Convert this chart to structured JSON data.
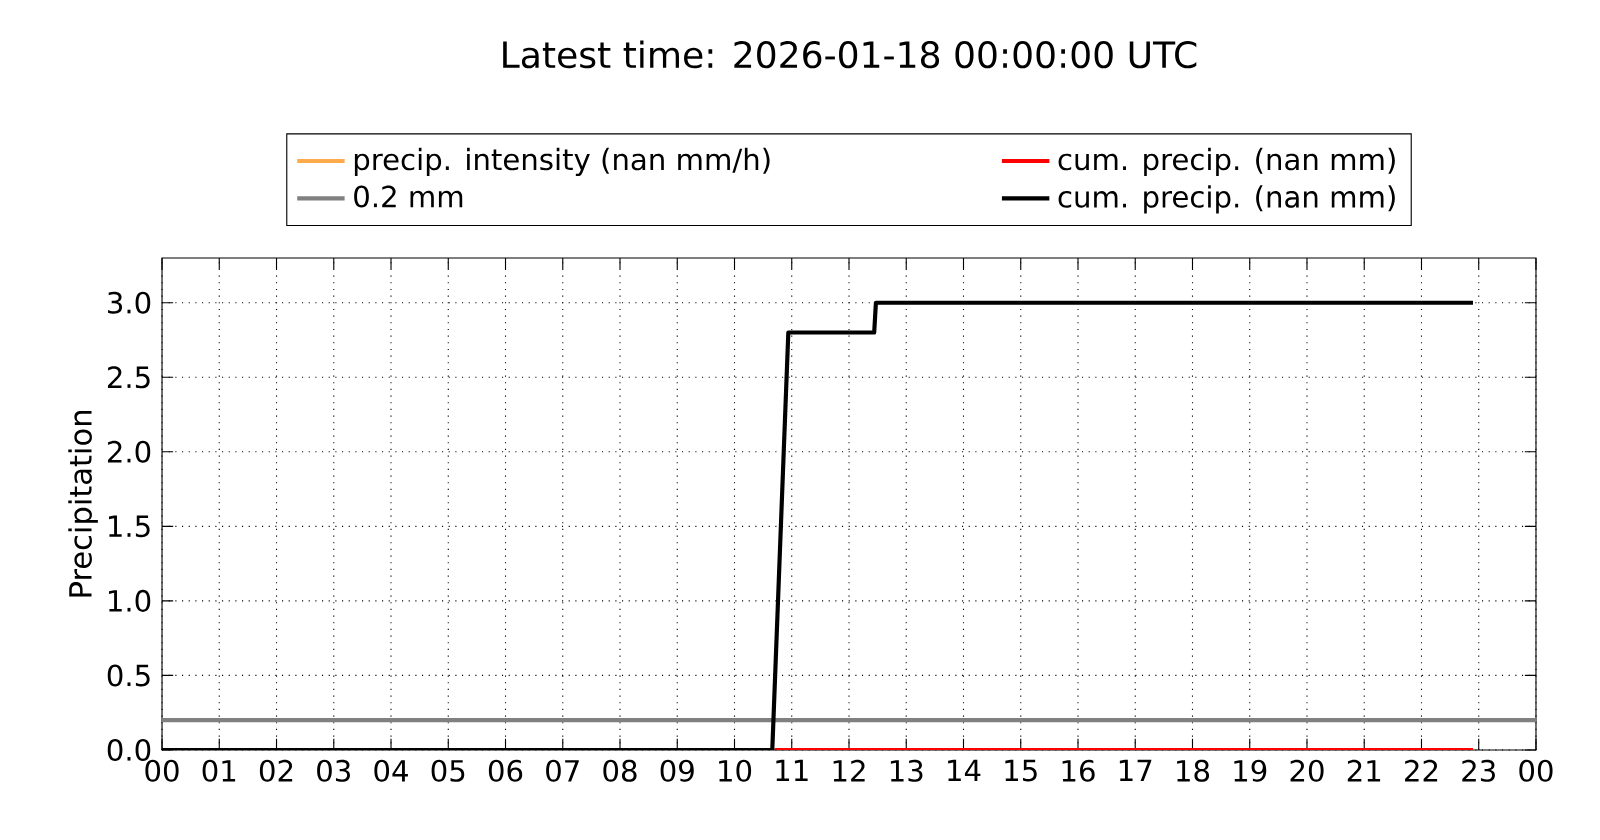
{
  "chart_data": {
    "type": "line",
    "title": "Latest time: 2026-01-18 00:00:00 UTC",
    "ylabel": "Precipitation",
    "series": [
      {
        "name": "precip. intensity (nan mm/h)",
        "color": "#ffaa4c"
      },
      {
        "name": "cum. precip. (nan mm)",
        "color": "#ff0000",
        "x": [
          10.7,
          22.9
        ],
        "values": [
          0,
          0
        ]
      },
      {
        "name": "0.2 mm",
        "color": "#808080",
        "x": [
          0,
          24
        ],
        "values": [
          0.2,
          0.2
        ]
      },
      {
        "name": "cum. precip. (nan mm)",
        "color": "#000000",
        "x": [
          0,
          10.66,
          10.84,
          10.94,
          12.44,
          12.47,
          22.9
        ],
        "values": [
          0,
          0,
          1.8,
          2.8,
          2.8,
          3.0,
          3.0
        ]
      }
    ],
    "xlim": [
      0,
      24
    ],
    "xticks": [
      {
        "value": 0,
        "label": "00"
      },
      {
        "value": 1,
        "label": "01"
      },
      {
        "value": 2,
        "label": "02"
      },
      {
        "value": 3,
        "label": "03"
      },
      {
        "value": 4,
        "label": "04"
      },
      {
        "value": 5,
        "label": "05"
      },
      {
        "value": 6,
        "label": "06"
      },
      {
        "value": 7,
        "label": "07"
      },
      {
        "value": 8,
        "label": "08"
      },
      {
        "value": 9,
        "label": "09"
      },
      {
        "value": 10,
        "label": "10"
      },
      {
        "value": 11,
        "label": "11"
      },
      {
        "value": 12,
        "label": "12"
      },
      {
        "value": 13,
        "label": "13"
      },
      {
        "value": 14,
        "label": "14"
      },
      {
        "value": 15,
        "label": "15"
      },
      {
        "value": 16,
        "label": "16"
      },
      {
        "value": 17,
        "label": "17"
      },
      {
        "value": 18,
        "label": "18"
      },
      {
        "value": 19,
        "label": "19"
      },
      {
        "value": 20,
        "label": "20"
      },
      {
        "value": 21,
        "label": "21"
      },
      {
        "value": 22,
        "label": "22"
      },
      {
        "value": 23,
        "label": "23"
      },
      {
        "value": 24,
        "label": "00"
      }
    ],
    "ylim": [
      0,
      3.3
    ],
    "yticks": [
      {
        "value": 0,
        "label": "0.0"
      },
      {
        "value": 0.5,
        "label": "0.5"
      },
      {
        "value": 1,
        "label": "1.0"
      },
      {
        "value": 1.5,
        "label": "1.5"
      },
      {
        "value": 2,
        "label": "2.0"
      },
      {
        "value": 2.5,
        "label": "2.5"
      },
      {
        "value": 3,
        "label": "3.0"
      }
    ],
    "grid": true,
    "legend": "top"
  }
}
